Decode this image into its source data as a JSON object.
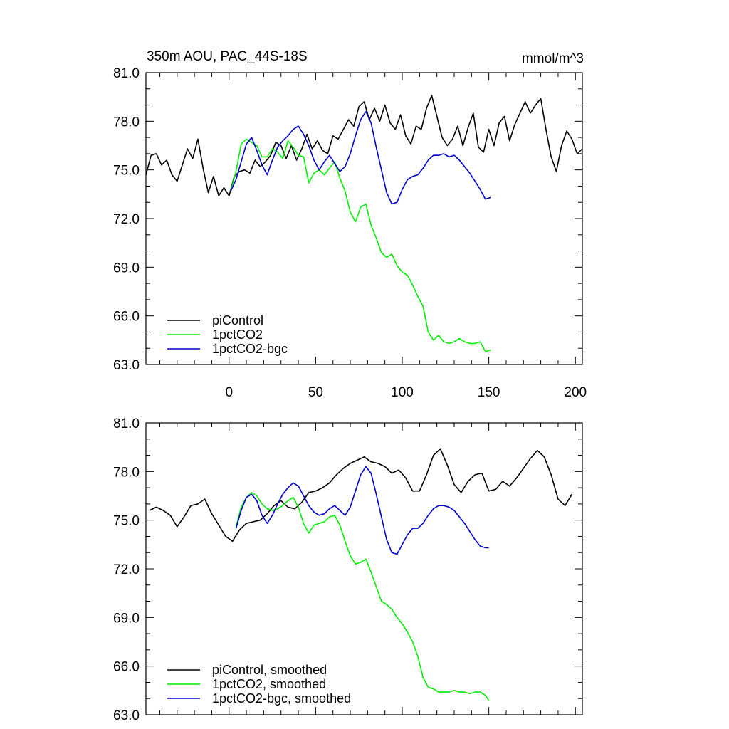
{
  "chart_data": [
    {
      "type": "line",
      "title": "350m AOU, PAC_44S-18S",
      "units": "mmol/m^3",
      "xlabel": "",
      "ylabel": "",
      "xlim": [
        -48,
        204
      ],
      "ylim": [
        63.0,
        81.0
      ],
      "xticks": [
        0,
        50,
        100,
        150,
        200
      ],
      "yticks": [
        "63.0",
        "66.0",
        "69.0",
        "72.0",
        "75.0",
        "78.0",
        "81.0"
      ],
      "legend_position": "bottom-left",
      "series": [
        {
          "name": "piControl",
          "color": "#000000",
          "x": [
            -48,
            -45,
            -42,
            -39,
            -36,
            -33,
            -30,
            -27,
            -24,
            -21,
            -18,
            -15,
            -12,
            -9,
            -6,
            -3,
            0,
            3,
            6,
            9,
            12,
            15,
            18,
            21,
            24,
            27,
            30,
            33,
            36,
            39,
            42,
            45,
            48,
            51,
            54,
            57,
            60,
            63,
            66,
            69,
            72,
            75,
            78,
            81,
            84,
            87,
            90,
            93,
            96,
            99,
            102,
            105,
            108,
            111,
            114,
            117,
            120,
            123,
            126,
            129,
            132,
            135,
            138,
            141,
            144,
            147,
            150,
            153,
            156,
            159,
            162,
            165,
            168,
            171,
            174,
            177,
            180,
            183,
            186,
            189,
            192,
            195,
            198,
            201,
            204
          ],
          "values": [
            74.7,
            75.9,
            76.0,
            75.3,
            75.6,
            74.7,
            74.3,
            75.3,
            76.3,
            75.7,
            76.9,
            75.1,
            73.6,
            74.6,
            73.4,
            73.9,
            73.4,
            74.6,
            74.9,
            75.0,
            74.8,
            75.6,
            75.2,
            75.5,
            75.9,
            76.7,
            76.5,
            75.7,
            76.5,
            75.6,
            76.3,
            77.2,
            76.3,
            76.8,
            76.2,
            76.0,
            77.1,
            76.9,
            77.5,
            78.1,
            77.7,
            78.9,
            79.2,
            78.1,
            78.8,
            78.0,
            79.0,
            77.9,
            77.5,
            78.4,
            77.1,
            76.6,
            77.7,
            77.5,
            78.8,
            79.6,
            78.3,
            77.0,
            76.5,
            76.9,
            77.7,
            76.5,
            77.6,
            78.5,
            76.4,
            76.1,
            77.5,
            76.5,
            77.9,
            78.3,
            76.8,
            77.8,
            78.5,
            79.2,
            78.5,
            79.0,
            79.4,
            77.5,
            75.8,
            74.9,
            76.5,
            77.4,
            76.9,
            76.0,
            76.3
          ]
        },
        {
          "name": "1pctCO2",
          "color": "#00ee00",
          "x": [
            1,
            4,
            7,
            10,
            13,
            16,
            19,
            22,
            25,
            28,
            31,
            34,
            37,
            40,
            43,
            46,
            49,
            52,
            55,
            58,
            61,
            64,
            67,
            70,
            73,
            76,
            79,
            82,
            85,
            88,
            91,
            94,
            97,
            100,
            103,
            106,
            109,
            112,
            115,
            118,
            121,
            124,
            127,
            130,
            133,
            136,
            139,
            142,
            145,
            148,
            151
          ],
          "values": [
            73.7,
            74.9,
            76.6,
            76.9,
            76.7,
            76.5,
            75.8,
            75.8,
            76.3,
            76.1,
            75.7,
            76.8,
            76.4,
            75.9,
            75.8,
            74.2,
            74.8,
            75.0,
            74.7,
            75.1,
            75.5,
            74.5,
            73.7,
            72.4,
            71.8,
            72.7,
            72.9,
            71.6,
            70.8,
            69.9,
            69.6,
            69.8,
            69.1,
            68.7,
            68.5,
            67.9,
            67.2,
            66.6,
            65.0,
            64.5,
            64.8,
            64.4,
            64.3,
            64.4,
            64.6,
            64.4,
            64.3,
            64.3,
            64.4,
            63.8,
            63.9
          ]
        },
        {
          "name": "1pctCO2-bgc",
          "color": "#0000cc",
          "x": [
            1,
            4,
            7,
            10,
            13,
            16,
            19,
            22,
            25,
            28,
            31,
            34,
            37,
            40,
            43,
            46,
            49,
            52,
            55,
            58,
            61,
            64,
            67,
            70,
            73,
            76,
            79,
            82,
            85,
            88,
            91,
            94,
            97,
            100,
            103,
            106,
            109,
            112,
            115,
            118,
            121,
            124,
            127,
            130,
            133,
            136,
            139,
            142,
            145,
            148,
            151
          ],
          "values": [
            73.7,
            74.4,
            75.5,
            76.6,
            77.0,
            76.2,
            75.3,
            74.7,
            75.6,
            76.4,
            76.8,
            77.1,
            77.5,
            77.7,
            77.2,
            76.5,
            75.6,
            75.0,
            75.5,
            75.9,
            75.4,
            74.9,
            75.2,
            76.0,
            77.1,
            78.1,
            78.6,
            77.9,
            76.4,
            75.0,
            73.6,
            72.9,
            73.0,
            73.8,
            74.4,
            74.6,
            74.7,
            75.1,
            75.6,
            75.9,
            75.9,
            76.0,
            75.8,
            75.9,
            75.6,
            75.2,
            74.8,
            74.3,
            73.8,
            73.2,
            73.3
          ]
        }
      ]
    },
    {
      "type": "line",
      "title": "",
      "xlabel": "",
      "ylabel": "",
      "xlim": [
        -48,
        204
      ],
      "ylim": [
        63.0,
        81.0
      ],
      "xticks": [
        0,
        50,
        100,
        150,
        200
      ],
      "yticks": [
        "63.0",
        "66.0",
        "69.0",
        "72.0",
        "75.0",
        "78.0",
        "81.0"
      ],
      "legend_position": "bottom-left",
      "series": [
        {
          "name": "piControl, smoothed",
          "color": "#000000",
          "x": [
            -46,
            -42,
            -38,
            -34,
            -30,
            -26,
            -22,
            -18,
            -14,
            -10,
            -6,
            -2,
            2,
            6,
            10,
            14,
            18,
            22,
            26,
            30,
            34,
            38,
            42,
            46,
            50,
            54,
            58,
            62,
            66,
            70,
            74,
            78,
            82,
            86,
            90,
            94,
            98,
            102,
            106,
            110,
            114,
            118,
            122,
            126,
            130,
            134,
            138,
            142,
            146,
            150,
            154,
            158,
            162,
            166,
            170,
            174,
            178,
            182,
            186,
            190,
            194,
            198
          ],
          "values": [
            75.6,
            75.8,
            75.6,
            75.3,
            74.6,
            75.2,
            75.9,
            76.0,
            76.3,
            75.4,
            74.7,
            74.0,
            73.7,
            74.4,
            74.8,
            74.9,
            75.0,
            75.4,
            75.9,
            76.2,
            75.8,
            75.7,
            76.1,
            76.7,
            76.8,
            77.0,
            77.3,
            77.8,
            78.2,
            78.5,
            78.7,
            78.9,
            78.6,
            78.5,
            78.3,
            77.9,
            78.1,
            77.6,
            76.8,
            76.8,
            77.8,
            79.0,
            79.4,
            78.4,
            77.2,
            76.7,
            77.4,
            77.8,
            77.9,
            76.8,
            76.9,
            77.4,
            77.1,
            77.6,
            78.2,
            78.8,
            79.3,
            78.9,
            77.8,
            76.3,
            75.9,
            76.6
          ]
        },
        {
          "name": "1pctCO2, smoothed",
          "color": "#00ee00",
          "x": [
            4,
            7,
            10,
            13,
            16,
            19,
            22,
            25,
            28,
            31,
            34,
            37,
            40,
            43,
            46,
            49,
            52,
            55,
            58,
            61,
            64,
            67,
            70,
            73,
            76,
            79,
            82,
            85,
            88,
            91,
            94,
            97,
            100,
            103,
            106,
            109,
            112,
            115,
            118,
            121,
            124,
            127,
            130,
            133,
            136,
            139,
            142,
            145,
            148,
            150
          ],
          "values": [
            74.6,
            75.8,
            76.4,
            76.7,
            76.5,
            76.0,
            75.7,
            75.6,
            75.7,
            75.9,
            76.2,
            76.4,
            75.8,
            74.8,
            74.2,
            74.7,
            74.8,
            74.9,
            75.2,
            75.3,
            74.7,
            73.7,
            72.8,
            72.3,
            72.4,
            72.6,
            71.8,
            70.9,
            70.0,
            69.8,
            69.5,
            69.0,
            68.6,
            68.1,
            67.5,
            66.6,
            65.3,
            64.7,
            64.6,
            64.4,
            64.4,
            64.4,
            64.5,
            64.4,
            64.4,
            64.3,
            64.4,
            64.4,
            64.2,
            63.9
          ]
        },
        {
          "name": "1pctCO2-bgc, smoothed",
          "color": "#0000cc",
          "x": [
            4,
            7,
            10,
            13,
            16,
            19,
            22,
            25,
            28,
            31,
            34,
            37,
            40,
            43,
            46,
            49,
            52,
            55,
            58,
            61,
            64,
            67,
            70,
            73,
            76,
            79,
            82,
            85,
            88,
            91,
            94,
            97,
            100,
            103,
            106,
            109,
            112,
            115,
            118,
            121,
            124,
            127,
            130,
            133,
            136,
            139,
            142,
            145,
            148,
            150
          ],
          "values": [
            74.5,
            75.6,
            76.4,
            76.6,
            76.2,
            75.3,
            74.8,
            75.3,
            76.0,
            76.6,
            77.0,
            77.3,
            77.1,
            76.5,
            75.9,
            75.5,
            75.3,
            75.4,
            75.7,
            75.9,
            75.6,
            75.3,
            75.8,
            76.8,
            77.8,
            78.3,
            77.9,
            76.6,
            75.2,
            73.8,
            73.0,
            72.9,
            73.5,
            74.1,
            74.5,
            74.5,
            74.8,
            75.3,
            75.7,
            75.9,
            75.9,
            75.8,
            75.6,
            75.2,
            74.8,
            74.3,
            73.8,
            73.4,
            73.3,
            73.3
          ]
        }
      ]
    }
  ]
}
